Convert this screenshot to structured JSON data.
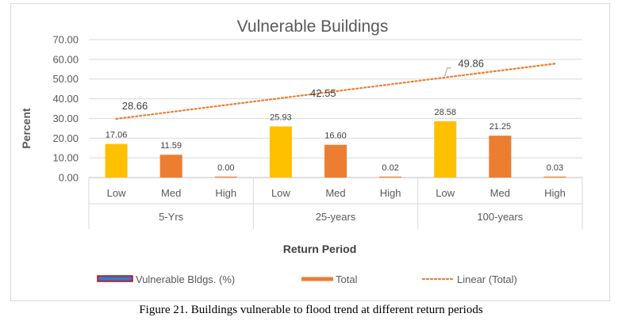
{
  "chart_data": {
    "type": "bar",
    "title": "Vulnerable Buildings",
    "ylabel": "Percent",
    "xlabel": "Return Period",
    "ylim": [
      0,
      70
    ],
    "yticks": [
      "0.00",
      "10.00",
      "20.00",
      "30.00",
      "40.00",
      "50.00",
      "60.00",
      "70.00"
    ],
    "groups": [
      {
        "label": "5-Yrs",
        "categories": [
          "Low",
          "Med",
          "High"
        ],
        "values": [
          17.06,
          11.59,
          0.0
        ],
        "value_labels": [
          "17.06",
          "11.59",
          "0.00"
        ]
      },
      {
        "label": "25-years",
        "categories": [
          "Low",
          "Med",
          "High"
        ],
        "values": [
          25.93,
          16.6,
          0.02
        ],
        "value_labels": [
          "25.93",
          "16.60",
          "0.02"
        ]
      },
      {
        "label": "100-years",
        "categories": [
          "Low",
          "Med",
          "High"
        ],
        "values": [
          28.58,
          21.25,
          0.03
        ],
        "value_labels": [
          "28.58",
          "21.25",
          "0.03"
        ]
      }
    ],
    "bar_colors": {
      "Low": "#ffc000",
      "Med": "#ed7d31",
      "High": "#ed7d31"
    },
    "total_points": [
      {
        "label": "28.66",
        "value": 28.66
      },
      {
        "label": "42.55",
        "value": 42.55
      },
      {
        "label": "49.86",
        "value": 49.86
      }
    ],
    "trendline": {
      "name": "Linear (Total)",
      "color": "#ed7d31",
      "start": 29.8,
      "end": 57.8
    },
    "legend": {
      "position": "bottom",
      "items": [
        {
          "name": "Vulnerable Bldgs. (%)",
          "color": "#4472c4",
          "border": "#c00000",
          "symbol": "box"
        },
        {
          "name": "Total",
          "color": "#ed7d31",
          "symbol": "line"
        },
        {
          "name": "Linear (Total)",
          "color": "#ed7d31",
          "symbol": "dotted"
        }
      ]
    },
    "grid": true
  },
  "caption": "Figure 21. Buildings vulnerable to flood trend at different return periods"
}
